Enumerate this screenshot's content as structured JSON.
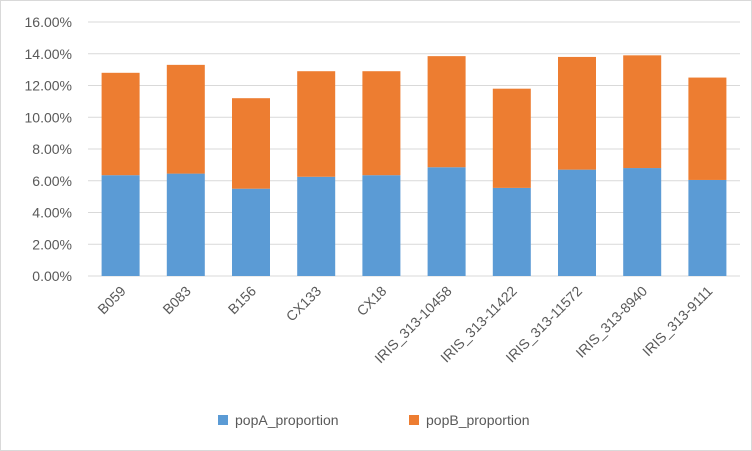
{
  "chart_data": {
    "type": "bar",
    "stacked": true,
    "categories": [
      "B059",
      "B083",
      "B156",
      "CX133",
      "CX18",
      "IRIS_313-10458",
      "IRIS_313-11422",
      "IRIS_313-11572",
      "IRIS_313-8940",
      "IRIS_313-9111"
    ],
    "series": [
      {
        "name": "popA_proportion",
        "color": "#5b9bd5",
        "values": [
          0.0635,
          0.0645,
          0.055,
          0.0625,
          0.0635,
          0.0685,
          0.0555,
          0.067,
          0.068,
          0.0605
        ]
      },
      {
        "name": "popB_proportion",
        "color": "#ed7d31",
        "values": [
          0.0645,
          0.0685,
          0.057,
          0.0665,
          0.0655,
          0.07,
          0.0625,
          0.071,
          0.071,
          0.0645
        ]
      }
    ],
    "ylim": [
      0,
      0.16
    ],
    "ytick_labels": [
      "0.00%",
      "2.00%",
      "4.00%",
      "6.00%",
      "8.00%",
      "10.00%",
      "12.00%",
      "14.00%",
      "16.00%"
    ],
    "ytick_values": [
      0,
      0.02,
      0.04,
      0.06,
      0.08,
      0.1,
      0.12,
      0.14,
      0.16
    ],
    "grid": true,
    "legend_position": "bottom",
    "title": "",
    "xlabel": "",
    "ylabel": ""
  }
}
